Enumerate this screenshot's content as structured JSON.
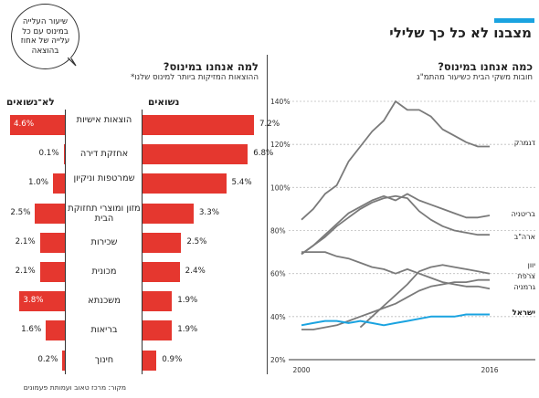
{
  "main_title": "מצבנו לא כל כך שלילי",
  "bubble_text": "שיעור העלייה במינוס עם כל עלייה של אחוז בהוצאה",
  "left_section": {
    "title": "למה אנחנו במינוס?",
    "subtitle": "ההוצאות המזיקות ביותר למינוס שלנו*",
    "header_married": "נשואים",
    "header_unmarried": "לא־נשואים"
  },
  "right_section": {
    "title": "כמה אנחנו במינוס?",
    "subtitle": "חובות משקי הבית כשיעור מהתמ\"ג"
  },
  "source": "מקור: מרכז טאוב ועמותת פעמונים",
  "colors": {
    "red": "#e5372f",
    "blue": "#1aa3e0",
    "gray": "#7a7a7a",
    "accent": "#1aa3e0"
  },
  "chart_data": [
    {
      "type": "bar",
      "categories": [
        "הוצאות אישיות",
        "אחזקת דירה",
        "שמרטפות וניקיון",
        "מזון ומוצרי תחזוקת הבית",
        "שכירות",
        "מכונית",
        "משכנתא",
        "בריאות",
        "חינוך"
      ],
      "series": [
        {
          "name": "נשואים",
          "values": [
            7.2,
            6.8,
            5.4,
            3.3,
            2.5,
            2.4,
            1.9,
            1.9,
            0.9
          ],
          "labels": [
            "7.2%",
            "6.8%",
            "5.4%",
            "3.3%",
            "2.5%",
            "2.4%",
            "1.9%",
            "1.9%",
            "0.9%"
          ]
        },
        {
          "name": "לא־נשואים",
          "values": [
            4.6,
            0.1,
            1.0,
            2.5,
            2.1,
            2.1,
            3.8,
            1.6,
            0.2
          ],
          "labels": [
            "4.6%",
            "0.1%",
            "1.0%",
            "2.5%",
            "2.1%",
            "2.1%",
            "3.8%",
            "1.6%",
            "0.2%"
          ]
        }
      ],
      "xlim": [
        0,
        7.5
      ]
    },
    {
      "type": "line",
      "x": [
        2000,
        2001,
        2002,
        2003,
        2004,
        2005,
        2006,
        2007,
        2008,
        2009,
        2010,
        2011,
        2012,
        2013,
        2014,
        2015,
        2016
      ],
      "xticks": [
        "2000",
        "2016"
      ],
      "yticks": [
        "20%",
        "40%",
        "60%",
        "80%",
        "100%",
        "120%",
        "140%"
      ],
      "ylim": [
        20,
        140
      ],
      "series": [
        {
          "name": "דנמרק",
          "color": "#7a7a7a",
          "values": [
            85,
            90,
            97,
            101,
            112,
            119,
            126,
            131,
            140,
            136,
            136,
            133,
            127,
            124,
            121,
            119,
            119
          ]
        },
        {
          "name": "בריטניה",
          "color": "#7a7a7a",
          "values": [
            69,
            73,
            78,
            83,
            88,
            91,
            94,
            96,
            94,
            97,
            94,
            92,
            90,
            88,
            86,
            86,
            87
          ]
        },
        {
          "name": "ארה\"ב",
          "color": "#7a7a7a",
          "values": [
            69,
            73,
            77,
            82,
            86,
            90,
            93,
            95,
            96,
            95,
            89,
            85,
            82,
            80,
            79,
            78,
            78
          ]
        },
        {
          "name": "יוון",
          "color": "#7a7a7a",
          "values": [
            null,
            null,
            null,
            null,
            null,
            35,
            40,
            45,
            50,
            55,
            61,
            63,
            64,
            63,
            62,
            61,
            60
          ]
        },
        {
          "name": "צרפת",
          "color": "#7a7a7a",
          "values": [
            34,
            34,
            35,
            36,
            38,
            40,
            42,
            44,
            46,
            49,
            52,
            54,
            55,
            56,
            56,
            57,
            57
          ]
        },
        {
          "name": "גרמניה",
          "color": "#7a7a7a",
          "values": [
            70,
            70,
            70,
            68,
            67,
            65,
            63,
            62,
            60,
            62,
            60,
            58,
            56,
            55,
            54,
            54,
            53
          ]
        },
        {
          "name": "ישראל",
          "color": "#1aa3e0",
          "values": [
            36,
            37,
            38,
            38,
            37,
            38,
            37,
            36,
            37,
            38,
            39,
            40,
            40,
            40,
            41,
            41,
            41
          ]
        }
      ]
    }
  ]
}
